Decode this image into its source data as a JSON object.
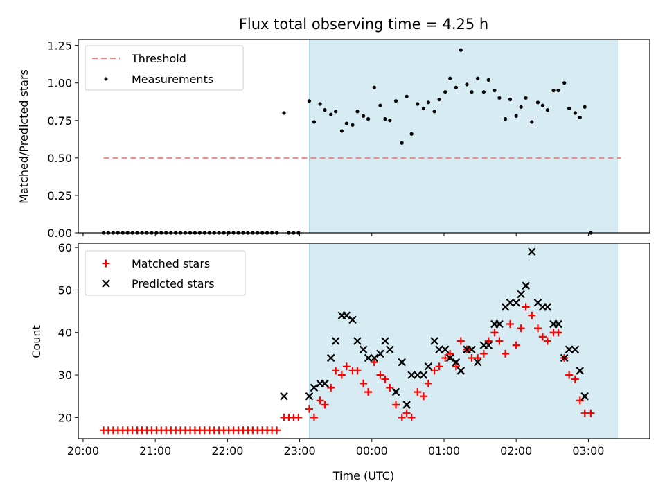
{
  "figure": {
    "title": "Flux total observing time = 4.25 h",
    "xlabel": "Time (UTC)",
    "x_ticks": [
      "20:00",
      "21:00",
      "22:00",
      "23:00",
      "00:00",
      "01:00",
      "02:00",
      "03:00"
    ]
  },
  "colors": {
    "threshold": "#ff7f7f",
    "measurements": "#000000",
    "matched": "#ff0000",
    "predicted": "#000000",
    "shade": "#add8e6"
  },
  "chart_data": [
    {
      "type": "scatter",
      "ylabel": "Matched/Predicted stars",
      "xlim": [
        "19:56",
        "03:51"
      ],
      "ylim": [
        0,
        1.29
      ],
      "y_ticks": [
        "0.00",
        "0.25",
        "0.50",
        "0.75",
        "1.00",
        "1.25"
      ],
      "shaded_span": [
        "23:08",
        "03:24"
      ],
      "legend_position": "top-left",
      "threshold": {
        "name": "Threshold",
        "y": 0.5,
        "x_start": "20:17",
        "x_end": "03:27"
      },
      "series": [
        {
          "name": "Measurements",
          "points": [
            [
              "20:17",
              0
            ],
            [
              "20:21",
              0
            ],
            [
              "20:25",
              0
            ],
            [
              "20:29",
              0
            ],
            [
              "20:33",
              0
            ],
            [
              "20:37",
              0
            ],
            [
              "20:41",
              0
            ],
            [
              "20:45",
              0
            ],
            [
              "20:49",
              0
            ],
            [
              "20:53",
              0
            ],
            [
              "20:57",
              0
            ],
            [
              "21:01",
              0
            ],
            [
              "21:05",
              0
            ],
            [
              "21:09",
              0
            ],
            [
              "21:13",
              0
            ],
            [
              "21:17",
              0
            ],
            [
              "21:21",
              0
            ],
            [
              "21:25",
              0
            ],
            [
              "21:29",
              0
            ],
            [
              "21:33",
              0
            ],
            [
              "21:37",
              0
            ],
            [
              "21:41",
              0
            ],
            [
              "21:45",
              0
            ],
            [
              "21:49",
              0
            ],
            [
              "21:53",
              0
            ],
            [
              "21:57",
              0
            ],
            [
              "22:01",
              0
            ],
            [
              "22:05",
              0
            ],
            [
              "22:09",
              0
            ],
            [
              "22:13",
              0
            ],
            [
              "22:17",
              0
            ],
            [
              "22:21",
              0
            ],
            [
              "22:25",
              0
            ],
            [
              "22:29",
              0
            ],
            [
              "22:33",
              0
            ],
            [
              "22:37",
              0
            ],
            [
              "22:41",
              0
            ],
            [
              "22:47",
              0.8
            ],
            [
              "22:51",
              0
            ],
            [
              "22:55",
              0
            ],
            [
              "22:59",
              0
            ],
            [
              "23:08",
              0.88
            ],
            [
              "23:12",
              0.74
            ],
            [
              "23:17",
              0.86
            ],
            [
              "23:21",
              0.82
            ],
            [
              "23:26",
              0.79
            ],
            [
              "23:30",
              0.81
            ],
            [
              "23:35",
              0.68
            ],
            [
              "23:39",
              0.73
            ],
            [
              "23:44",
              0.72
            ],
            [
              "23:48",
              0.81
            ],
            [
              "23:53",
              0.78
            ],
            [
              "23:57",
              0.76
            ],
            [
              "00:02",
              0.97
            ],
            [
              "00:07",
              0.85
            ],
            [
              "00:11",
              0.76
            ],
            [
              "00:15",
              0.75
            ],
            [
              "00:20",
              0.88
            ],
            [
              "00:25",
              0.6
            ],
            [
              "00:29",
              0.91
            ],
            [
              "00:33",
              0.66
            ],
            [
              "00:38",
              0.86
            ],
            [
              "00:43",
              0.83
            ],
            [
              "00:47",
              0.87
            ],
            [
              "00:52",
              0.81
            ],
            [
              "00:56",
              0.89
            ],
            [
              "01:01",
              0.94
            ],
            [
              "01:05",
              1.03
            ],
            [
              "01:10",
              0.97
            ],
            [
              "01:14",
              1.22
            ],
            [
              "01:19",
              0.99
            ],
            [
              "01:23",
              0.94
            ],
            [
              "01:28",
              1.03
            ],
            [
              "01:33",
              0.94
            ],
            [
              "01:37",
              1.02
            ],
            [
              "01:42",
              0.95
            ],
            [
              "01:46",
              0.9
            ],
            [
              "01:51",
              0.76
            ],
            [
              "01:55",
              0.89
            ],
            [
              "02:00",
              0.78
            ],
            [
              "02:04",
              0.84
            ],
            [
              "02:08",
              0.9
            ],
            [
              "02:13",
              0.74
            ],
            [
              "02:18",
              0.87
            ],
            [
              "02:22",
              0.85
            ],
            [
              "02:26",
              0.82
            ],
            [
              "02:31",
              0.95
            ],
            [
              "02:35",
              0.95
            ],
            [
              "02:40",
              1.0
            ],
            [
              "02:44",
              0.83
            ],
            [
              "02:49",
              0.8
            ],
            [
              "02:53",
              0.77
            ],
            [
              "02:57",
              0.84
            ],
            [
              "03:02",
              0
            ]
          ]
        }
      ]
    },
    {
      "type": "scatter",
      "ylabel": "Count",
      "xlim": [
        "19:56",
        "03:51"
      ],
      "ylim": [
        15,
        61
      ],
      "y_ticks": [
        "20",
        "30",
        "40",
        "50",
        "60"
      ],
      "shaded_span": [
        "23:08",
        "03:24"
      ],
      "legend_position": "top-left",
      "series": [
        {
          "name": "Matched stars",
          "marker": "+",
          "points": [
            [
              "20:17",
              17
            ],
            [
              "20:21",
              17
            ],
            [
              "20:25",
              17
            ],
            [
              "20:29",
              17
            ],
            [
              "20:33",
              17
            ],
            [
              "20:37",
              17
            ],
            [
              "20:41",
              17
            ],
            [
              "20:45",
              17
            ],
            [
              "20:49",
              17
            ],
            [
              "20:53",
              17
            ],
            [
              "20:57",
              17
            ],
            [
              "21:01",
              17
            ],
            [
              "21:05",
              17
            ],
            [
              "21:09",
              17
            ],
            [
              "21:13",
              17
            ],
            [
              "21:17",
              17
            ],
            [
              "21:21",
              17
            ],
            [
              "21:25",
              17
            ],
            [
              "21:29",
              17
            ],
            [
              "21:33",
              17
            ],
            [
              "21:37",
              17
            ],
            [
              "21:41",
              17
            ],
            [
              "21:45",
              17
            ],
            [
              "21:49",
              17
            ],
            [
              "21:53",
              17
            ],
            [
              "21:57",
              17
            ],
            [
              "22:01",
              17
            ],
            [
              "22:05",
              17
            ],
            [
              "22:09",
              17
            ],
            [
              "22:13",
              17
            ],
            [
              "22:17",
              17
            ],
            [
              "22:21",
              17
            ],
            [
              "22:25",
              17
            ],
            [
              "22:29",
              17
            ],
            [
              "22:33",
              17
            ],
            [
              "22:37",
              17
            ],
            [
              "22:41",
              17
            ],
            [
              "22:47",
              20
            ],
            [
              "22:51",
              20
            ],
            [
              "22:55",
              20
            ],
            [
              "22:59",
              20
            ],
            [
              "23:08",
              22
            ],
            [
              "23:12",
              20
            ],
            [
              "23:17",
              24
            ],
            [
              "23:21",
              23
            ],
            [
              "23:26",
              27
            ],
            [
              "23:30",
              31
            ],
            [
              "23:35",
              30
            ],
            [
              "23:39",
              32
            ],
            [
              "23:44",
              31
            ],
            [
              "23:48",
              31
            ],
            [
              "23:53",
              28
            ],
            [
              "23:57",
              26
            ],
            [
              "00:02",
              33
            ],
            [
              "00:07",
              30
            ],
            [
              "00:11",
              29
            ],
            [
              "00:15",
              27
            ],
            [
              "00:20",
              23
            ],
            [
              "00:25",
              20
            ],
            [
              "00:29",
              21
            ],
            [
              "00:33",
              20
            ],
            [
              "00:38",
              26
            ],
            [
              "00:43",
              25
            ],
            [
              "00:47",
              28
            ],
            [
              "00:52",
              31
            ],
            [
              "00:56",
              32
            ],
            [
              "01:01",
              34
            ],
            [
              "01:05",
              35
            ],
            [
              "01:10",
              32
            ],
            [
              "01:14",
              38
            ],
            [
              "01:19",
              36
            ],
            [
              "01:23",
              34
            ],
            [
              "01:28",
              34
            ],
            [
              "01:33",
              35
            ],
            [
              "01:37",
              38
            ],
            [
              "01:42",
              40
            ],
            [
              "01:46",
              38
            ],
            [
              "01:51",
              35
            ],
            [
              "01:55",
              42
            ],
            [
              "02:00",
              37
            ],
            [
              "02:04",
              41
            ],
            [
              "02:08",
              46
            ],
            [
              "02:13",
              44
            ],
            [
              "02:18",
              41
            ],
            [
              "02:22",
              39
            ],
            [
              "02:26",
              38
            ],
            [
              "02:31",
              40
            ],
            [
              "02:35",
              40
            ],
            [
              "02:40",
              34
            ],
            [
              "02:44",
              30
            ],
            [
              "02:49",
              29
            ],
            [
              "02:53",
              24
            ],
            [
              "02:57",
              21
            ],
            [
              "03:02",
              21
            ]
          ]
        },
        {
          "name": "Predicted stars",
          "marker": "x",
          "points": [
            [
              "22:47",
              25
            ],
            [
              "23:08",
              25
            ],
            [
              "23:12",
              27
            ],
            [
              "23:17",
              28
            ],
            [
              "23:21",
              28
            ],
            [
              "23:26",
              34
            ],
            [
              "23:30",
              38
            ],
            [
              "23:35",
              44
            ],
            [
              "23:39",
              44
            ],
            [
              "23:44",
              43
            ],
            [
              "23:48",
              38
            ],
            [
              "23:53",
              36
            ],
            [
              "23:57",
              34
            ],
            [
              "00:02",
              34
            ],
            [
              "00:07",
              35
            ],
            [
              "00:11",
              38
            ],
            [
              "00:15",
              36
            ],
            [
              "00:20",
              26
            ],
            [
              "00:25",
              33
            ],
            [
              "00:29",
              23
            ],
            [
              "00:33",
              30
            ],
            [
              "00:38",
              30
            ],
            [
              "00:43",
              30
            ],
            [
              "00:47",
              32
            ],
            [
              "00:52",
              38
            ],
            [
              "00:56",
              36
            ],
            [
              "01:01",
              36
            ],
            [
              "01:05",
              34
            ],
            [
              "01:10",
              33
            ],
            [
              "01:14",
              31
            ],
            [
              "01:19",
              36
            ],
            [
              "01:23",
              36
            ],
            [
              "01:28",
              33
            ],
            [
              "01:33",
              37
            ],
            [
              "01:37",
              37
            ],
            [
              "01:42",
              42
            ],
            [
              "01:46",
              42
            ],
            [
              "01:51",
              46
            ],
            [
              "01:55",
              47
            ],
            [
              "02:00",
              47
            ],
            [
              "02:04",
              49
            ],
            [
              "02:08",
              51
            ],
            [
              "02:13",
              59
            ],
            [
              "02:18",
              47
            ],
            [
              "02:22",
              46
            ],
            [
              "02:26",
              46
            ],
            [
              "02:31",
              42
            ],
            [
              "02:35",
              42
            ],
            [
              "02:40",
              34
            ],
            [
              "02:44",
              36
            ],
            [
              "02:49",
              36
            ],
            [
              "02:53",
              31
            ],
            [
              "02:57",
              25
            ]
          ]
        }
      ]
    }
  ]
}
